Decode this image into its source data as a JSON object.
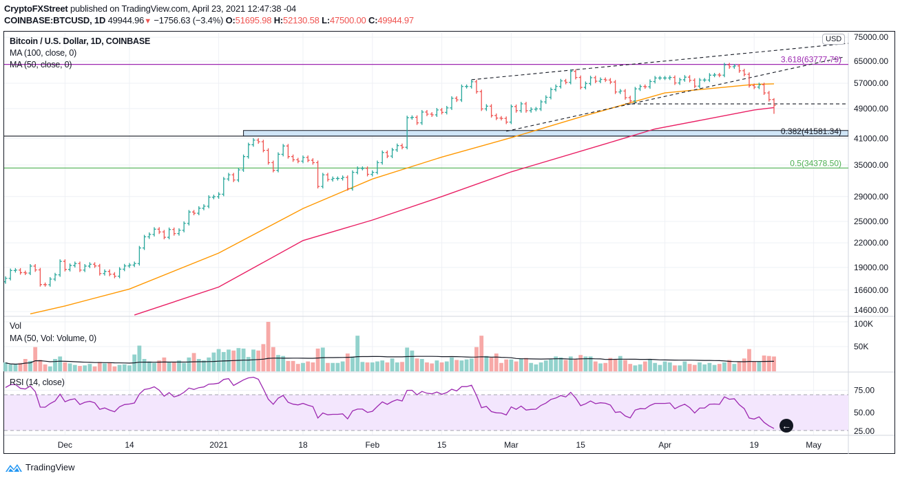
{
  "header": {
    "author": "CryptoFXStreet",
    "published": " published on TradingView.com, April 23, 2021 12:47:38 -04",
    "symbol": "COINBASE:BTCUSD, 1D",
    "last": "49944.96",
    "change": "−1756.63 (−3.4%)",
    "o_label": "O:",
    "o": "51695.98",
    "h_label": "H:",
    "h": "52130.58",
    "l_label": "L:",
    "l": "47500.00",
    "c_label": "C:",
    "c": "49944.97"
  },
  "legend": {
    "title": "Bitcoin / U.S. Dollar, 1D, COINBASE",
    "ma100": "MA (100, close, 0)",
    "ma50": "MA (50, close, 0)",
    "vol": "Vol",
    "vol_ma": "MA (50, Vol: Volume, 0)",
    "rsi": "RSI (14, close)"
  },
  "currency_badge": "USD",
  "footer": {
    "logo_text": "TradingView"
  },
  "colors": {
    "up": "#26a69a",
    "down": "#ef5350",
    "vol_up": "#92d2cc",
    "vol_down": "#f7a9a7",
    "ma50": "#ff9800",
    "ma100": "#e91e63",
    "rsi": "#9c27b0",
    "rsi_band": "#f3e6fd",
    "fib_3618": "#9c27b0",
    "fib_0382": "#131722",
    "fib_05": "#4caf50",
    "zone": "#cfe5f7"
  },
  "chart_data": {
    "type": "ohlc-bars",
    "scale": "log",
    "first_date": "2020-11-19",
    "closes": [
      17800,
      18650,
      18700,
      18420,
      18370,
      19150,
      18720,
      17150,
      17140,
      17720,
      18180,
      19700,
      18770,
      19220,
      19440,
      18700,
      19150,
      19360,
      19170,
      18320,
      18550,
      18250,
      18030,
      18800,
      19170,
      19270,
      19440,
      21340,
      22800,
      23130,
      23860,
      23480,
      22740,
      23820,
      23250,
      23710,
      24700,
      26440,
      26250,
      27040,
      27370,
      28870,
      28970,
      29400,
      32200,
      33000,
      32000,
      34000,
      36800,
      39500,
      40600,
      40200,
      38200,
      35500,
      33900,
      37300,
      39200,
      36800,
      36100,
      35800,
      36600,
      36000,
      35500,
      30800,
      33000,
      32100,
      32300,
      32300,
      32500,
      30400,
      33500,
      34300,
      34300,
      33100,
      33500,
      35500,
      37700,
      36900,
      38300,
      39300,
      38900,
      46400,
      46500,
      45000,
      48000,
      47400,
      47200,
      48600,
      47900,
      49200,
      52100,
      51600,
      55900,
      55900,
      57500,
      54200,
      48900,
      49700,
      47000,
      46300,
      46200,
      45200,
      49600,
      48400,
      50400,
      48400,
      48800,
      48900,
      51000,
      52400,
      54900,
      55900,
      57800,
      57300,
      61200,
      59000,
      55600,
      56900,
      58900,
      57700,
      58300,
      58100,
      57400,
      54100,
      54400,
      52300,
      51300,
      55100,
      55900,
      55800,
      57600,
      58800,
      58800,
      58800,
      59000,
      57100,
      58200,
      59100,
      58000,
      56000,
      58100,
      58100,
      59800,
      59900,
      59800,
      63600,
      62900,
      63200,
      61400,
      60100,
      56200,
      55700,
      56500,
      53800,
      51700,
      49945
    ],
    "last_candle": {
      "o": 51695.98,
      "h": 52130.58,
      "l": 47500.0,
      "c": 49944.97
    },
    "volume_k": [
      18,
      14,
      14,
      17,
      25,
      21,
      49,
      23,
      14,
      10,
      25,
      30,
      18,
      16,
      13,
      11,
      12,
      15,
      10,
      19,
      16,
      18,
      10,
      13,
      14,
      12,
      34,
      52,
      25,
      20,
      17,
      22,
      28,
      18,
      18,
      22,
      17,
      28,
      37,
      25,
      22,
      28,
      38,
      45,
      39,
      44,
      42,
      47,
      46,
      29,
      44,
      42,
      55,
      100,
      49,
      33,
      31,
      21,
      21,
      15,
      17,
      20,
      18,
      46,
      48,
      17,
      17,
      17,
      20,
      36,
      30,
      72,
      19,
      18,
      18,
      20,
      22,
      18,
      26,
      18,
      19,
      48,
      42,
      26,
      25,
      18,
      16,
      22,
      18,
      20,
      28,
      23,
      22,
      24,
      26,
      49,
      72,
      31,
      28,
      36,
      17,
      24,
      24,
      20,
      25,
      27,
      17,
      14,
      18,
      22,
      24,
      30,
      28,
      23,
      30,
      24,
      33,
      30,
      30,
      20,
      16,
      17,
      27,
      25,
      31,
      23,
      15,
      12,
      14,
      20,
      24,
      17,
      13,
      20,
      18,
      12,
      12,
      20,
      15,
      13,
      18,
      14,
      17,
      13,
      15,
      18,
      23,
      15,
      20,
      26,
      45,
      20,
      20,
      32,
      31,
      30
    ],
    "ma50": [
      [
        "2020-11-24",
        14400
      ],
      [
        "2020-12-01",
        15100
      ],
      [
        "2020-12-14",
        16700
      ],
      [
        "2021-01-01",
        20700
      ],
      [
        "2021-01-18",
        27000
      ],
      [
        "2021-02-01",
        32200
      ],
      [
        "2021-02-15",
        36700
      ],
      [
        "2021-03-01",
        41200
      ],
      [
        "2021-03-15",
        46600
      ],
      [
        "2021-04-01",
        53800
      ],
      [
        "2021-04-19",
        56600
      ],
      [
        "2021-04-23",
        56800
      ]
    ],
    "ma100": [
      [
        "2020-12-15",
        14300
      ],
      [
        "2021-01-01",
        16900
      ],
      [
        "2021-01-18",
        22300
      ],
      [
        "2021-02-01",
        25200
      ],
      [
        "2021-02-15",
        29000
      ],
      [
        "2021-03-01",
        33600
      ],
      [
        "2021-03-20",
        39700
      ],
      [
        "2021-03-30",
        43400
      ],
      [
        "2021-04-09",
        45900
      ],
      [
        "2021-04-19",
        48600
      ],
      [
        "2021-04-23",
        49300
      ]
    ],
    "price_ticks": [
      75000,
      65000,
      57000,
      49000,
      41000,
      35000,
      29000,
      25000,
      22000,
      19000,
      16600,
      14600
    ],
    "volume_ticks": [
      {
        "v": 100,
        "label": "100K"
      },
      {
        "v": 50,
        "label": "50K"
      }
    ],
    "rsi_ticks": [
      {
        "v": 75,
        "label": "75.00"
      },
      {
        "v": 50,
        "label": "50.00"
      },
      {
        "v": 25,
        "label": "25.00"
      }
    ],
    "rsi_band": [
      30,
      70
    ],
    "time_ticks": [
      [
        "2020-12-01",
        "Dec"
      ],
      [
        "2020-12-14",
        "14"
      ],
      [
        "2021-01-01",
        "2021"
      ],
      [
        "2021-01-18",
        "18"
      ],
      [
        "2021-02-01",
        "Feb"
      ],
      [
        "2021-02-15",
        "15"
      ],
      [
        "2021-03-01",
        "Mar"
      ],
      [
        "2021-03-15",
        "15"
      ],
      [
        "2021-04-01",
        "Apr"
      ],
      [
        "2021-04-19",
        "19"
      ],
      [
        "2021-05-01",
        "May"
      ]
    ],
    "fib_levels": [
      {
        "label": "3.618(63777.79)",
        "price": 63777.79,
        "color": "#9c27b0"
      },
      {
        "label": "0.382(41581.34)",
        "price": 41581.34,
        "color": "#131722"
      },
      {
        "label": "0.5(34378.50)",
        "price": 34378.5,
        "color": "#4caf50"
      }
    ],
    "zone": {
      "from_date": "2021-01-06",
      "top": 43000,
      "bottom": 41581.34
    },
    "trendlines": [
      {
        "from": [
          "2021-02-21",
          58200
        ],
        "to": [
          "2021-05-08",
          72300
        ]
      },
      {
        "from": [
          "2021-02-28",
          42800
        ],
        "to": [
          "2021-05-07",
          66600
        ]
      },
      {
        "from": [
          "2021-03-24",
          50400
        ],
        "to": [
          "2021-05-10",
          50400
        ]
      }
    ]
  }
}
